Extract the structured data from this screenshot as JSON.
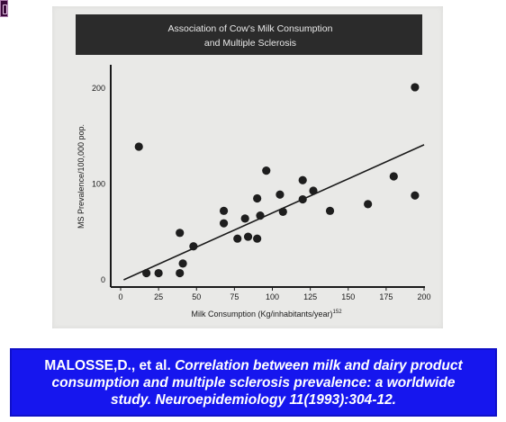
{
  "chart_data": {
    "type": "scatter",
    "title": "Association of Cow's Milk Consumption and Multiple Sclerosis",
    "title_lines": [
      "Association of Cow's Milk Consumption",
      "and Multiple Sclerosis"
    ],
    "xlabel": "Milk Consumption (Kg/inhabitants/year)",
    "xlabel_superscript": "152",
    "ylabel": "MS Prevalence/100,000 pop.",
    "xlim": [
      -5,
      200
    ],
    "ylim": [
      0,
      210
    ],
    "x_ticks": [
      0,
      25,
      50,
      75,
      100,
      125,
      150,
      175,
      200
    ],
    "x_tick_labels": [
      "0",
      "25",
      "50",
      "75",
      "100",
      "125",
      "150",
      "175",
      "200"
    ],
    "y_ticks": [
      0,
      100,
      200
    ],
    "y_tick_labels": [
      "0",
      "100",
      "200"
    ],
    "grid": false,
    "legend": "none",
    "points": [
      {
        "x": 12,
        "y": 139
      },
      {
        "x": 17,
        "y": 7
      },
      {
        "x": 25,
        "y": 7
      },
      {
        "x": 39,
        "y": 7
      },
      {
        "x": 39,
        "y": 49
      },
      {
        "x": 41,
        "y": 17
      },
      {
        "x": 48,
        "y": 35
      },
      {
        "x": 68,
        "y": 72
      },
      {
        "x": 68,
        "y": 59
      },
      {
        "x": 77,
        "y": 43
      },
      {
        "x": 82,
        "y": 64
      },
      {
        "x": 84,
        "y": 45
      },
      {
        "x": 90,
        "y": 85
      },
      {
        "x": 90,
        "y": 43
      },
      {
        "x": 92,
        "y": 67
      },
      {
        "x": 96,
        "y": 114
      },
      {
        "x": 105,
        "y": 89
      },
      {
        "x": 107,
        "y": 71
      },
      {
        "x": 120,
        "y": 104
      },
      {
        "x": 120,
        "y": 84
      },
      {
        "x": 127,
        "y": 93
      },
      {
        "x": 138,
        "y": 72
      },
      {
        "x": 163,
        "y": 79
      },
      {
        "x": 180,
        "y": 108
      },
      {
        "x": 194,
        "y": 201
      },
      {
        "x": 194,
        "y": 88
      }
    ],
    "trendline": {
      "x1": 2,
      "y1": 0,
      "x2": 200,
      "y2": 141
    },
    "colors": {
      "points": "#1e1e1e",
      "axes": "#1a1a1a",
      "title_bar": "#2b2b2b",
      "title_text": "#e8e8e8",
      "panel": "#e9e9e7"
    }
  },
  "citation": {
    "author": "MALOSSE,D., et al. ",
    "title_line1": "Correlation between milk and dairy product",
    "title_line2": "consumption and multiple sclerosis prevalence: a worldwide",
    "title_line3": "study. Neuroepidemiology 11(1993):304-12.",
    "colors": {
      "background": "#1616ee",
      "text": "#ffffff"
    }
  }
}
